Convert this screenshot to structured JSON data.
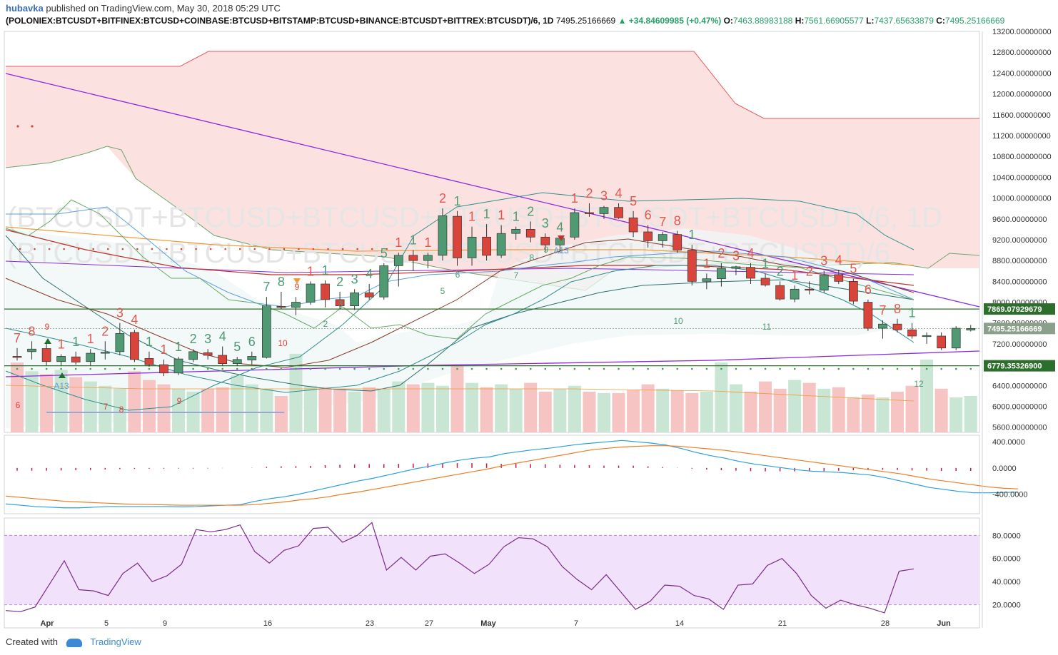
{
  "header": {
    "author": "hubavka",
    "published_text": "published on TradingView.com, May 30, 2018 05:29 UTC",
    "symbol": "(POLONIEX:BTCUSDT+BITFINEX:BTCUSD+COINBASE:BTCUSD+BITSTAMP:BTCUSD+BINANCE:BTCUSDT+BITTREX:BTCUSDT)/6, 1D",
    "last": "7495.25166669",
    "change": "▲ +34.84609985 (+0.47%)",
    "o_label": "O:",
    "o": "7463.88983188",
    "h_label": "H:",
    "h": "7561.66905577",
    "l_label": "L:",
    "l": "7437.65633879",
    "c_label": "C:",
    "c": "7495.25166669"
  },
  "watermark": {
    "line1": "(BTCUSDT+BTCUSD+BTCUSD+BTCUSD+BTCUSDT+BTCUSDT)/6, 1D",
    "line2": "(BTCUSDT+BTCUSD+BTCUSD+BTCUSD+BTCUSDT+BTCUSDT)/6"
  },
  "footer": {
    "created_with": "Created with",
    "brand": "TradingView"
  },
  "colors": {
    "up": "#4f9a73",
    "down": "#d9453a",
    "cloud_red": "#fbdcdc",
    "rsi_band": "#f1e1fb",
    "macd": "#2a9fe0",
    "signal": "#f07c22"
  },
  "chart_data": {
    "type": "candlestick",
    "x_tick_labels": [
      "Apr",
      "5",
      "9",
      "16",
      "23",
      "27",
      "May",
      "7",
      "14",
      "21",
      "28",
      "Jun"
    ],
    "price_axis": {
      "range": [
        5500,
        13200
      ],
      "ticks": [
        "13200.00000000",
        "12800.00000000",
        "12400.00000000",
        "12000.00000000",
        "11600.00000000",
        "11200.00000000",
        "10800.00000000",
        "10400.00000000",
        "10000.00000000",
        "9600.00000000",
        "9200.00000000",
        "8800.00000000",
        "8400.00000000",
        "8000.00000000",
        "7600.00000000",
        "7200.00000000",
        "6800.00000000",
        "6400.00000000",
        "6000.00000000",
        "5600.00000000"
      ],
      "tick_values": [
        13200,
        12800,
        12400,
        12000,
        11600,
        11200,
        10800,
        10400,
        10000,
        9600,
        9200,
        8800,
        8400,
        8000,
        7600,
        7200,
        6800,
        6400,
        6000,
        5600
      ]
    },
    "horizontal_levels": [
      {
        "label": "7869.07929679",
        "value": 7869.08
      },
      {
        "label": "7495.25166669",
        "value": 7495.25
      },
      {
        "label": "6779.35326900",
        "value": 6779.35
      }
    ],
    "candles": [
      {
        "o": 6960,
        "h": 7120,
        "l": 6880,
        "c": 6940
      },
      {
        "o": 7050,
        "h": 7250,
        "l": 6900,
        "c": 7100
      },
      {
        "o": 7110,
        "h": 7260,
        "l": 6790,
        "c": 6860
      },
      {
        "o": 6860,
        "h": 7000,
        "l": 6780,
        "c": 6960
      },
      {
        "o": 6950,
        "h": 7050,
        "l": 6800,
        "c": 6850
      },
      {
        "o": 6860,
        "h": 7100,
        "l": 6780,
        "c": 7020
      },
      {
        "o": 7020,
        "h": 7250,
        "l": 6900,
        "c": 7040
      },
      {
        "o": 7050,
        "h": 7600,
        "l": 6980,
        "c": 7400
      },
      {
        "o": 7420,
        "h": 7470,
        "l": 6850,
        "c": 6900
      },
      {
        "o": 6920,
        "h": 7050,
        "l": 6760,
        "c": 6800
      },
      {
        "o": 6800,
        "h": 6900,
        "l": 6580,
        "c": 6640
      },
      {
        "o": 6640,
        "h": 6950,
        "l": 6600,
        "c": 6910
      },
      {
        "o": 6900,
        "h": 7100,
        "l": 6850,
        "c": 7050
      },
      {
        "o": 7030,
        "h": 7100,
        "l": 6900,
        "c": 6980
      },
      {
        "o": 6980,
        "h": 7150,
        "l": 6780,
        "c": 6820
      },
      {
        "o": 6820,
        "h": 6950,
        "l": 6780,
        "c": 6900
      },
      {
        "o": 6890,
        "h": 7050,
        "l": 6800,
        "c": 6960
      },
      {
        "o": 6940,
        "h": 8100,
        "l": 6920,
        "c": 7930
      },
      {
        "o": 7920,
        "h": 8200,
        "l": 7870,
        "c": 7900
      },
      {
        "o": 7900,
        "h": 8100,
        "l": 7750,
        "c": 8000
      },
      {
        "o": 8000,
        "h": 8400,
        "l": 7950,
        "c": 8350
      },
      {
        "o": 8350,
        "h": 8420,
        "l": 7900,
        "c": 8050
      },
      {
        "o": 8050,
        "h": 8200,
        "l": 7870,
        "c": 7930
      },
      {
        "o": 7930,
        "h": 8250,
        "l": 7850,
        "c": 8180
      },
      {
        "o": 8180,
        "h": 8350,
        "l": 8050,
        "c": 8100
      },
      {
        "o": 8100,
        "h": 8750,
        "l": 8050,
        "c": 8700
      },
      {
        "o": 8700,
        "h": 8950,
        "l": 8300,
        "c": 8900
      },
      {
        "o": 8900,
        "h": 9000,
        "l": 8600,
        "c": 8800
      },
      {
        "o": 8800,
        "h": 8950,
        "l": 8650,
        "c": 8900
      },
      {
        "o": 8900,
        "h": 9800,
        "l": 8800,
        "c": 9660
      },
      {
        "o": 9650,
        "h": 9750,
        "l": 8700,
        "c": 8850
      },
      {
        "o": 8850,
        "h": 9450,
        "l": 8700,
        "c": 9250
      },
      {
        "o": 9250,
        "h": 9500,
        "l": 8800,
        "c": 8900
      },
      {
        "o": 8900,
        "h": 9480,
        "l": 8850,
        "c": 9320
      },
      {
        "o": 9320,
        "h": 9450,
        "l": 9200,
        "c": 9400
      },
      {
        "o": 9400,
        "h": 9550,
        "l": 9150,
        "c": 9250
      },
      {
        "o": 9250,
        "h": 9320,
        "l": 8950,
        "c": 9100
      },
      {
        "o": 9100,
        "h": 9250,
        "l": 8950,
        "c": 9230
      },
      {
        "o": 9250,
        "h": 9800,
        "l": 9200,
        "c": 9720
      },
      {
        "o": 9720,
        "h": 9900,
        "l": 9640,
        "c": 9700
      },
      {
        "o": 9700,
        "h": 9850,
        "l": 9600,
        "c": 9820
      },
      {
        "o": 9820,
        "h": 9900,
        "l": 9600,
        "c": 9620
      },
      {
        "o": 9620,
        "h": 9750,
        "l": 9250,
        "c": 9350
      },
      {
        "o": 9350,
        "h": 9480,
        "l": 9050,
        "c": 9180
      },
      {
        "o": 9180,
        "h": 9350,
        "l": 9050,
        "c": 9300
      },
      {
        "o": 9300,
        "h": 9370,
        "l": 8950,
        "c": 9000
      },
      {
        "o": 9000,
        "h": 9100,
        "l": 8320,
        "c": 8400
      },
      {
        "o": 8400,
        "h": 8550,
        "l": 8250,
        "c": 8450
      },
      {
        "o": 8450,
        "h": 8750,
        "l": 8300,
        "c": 8650
      },
      {
        "o": 8650,
        "h": 8700,
        "l": 8520,
        "c": 8680
      },
      {
        "o": 8670,
        "h": 8750,
        "l": 8350,
        "c": 8460
      },
      {
        "o": 8460,
        "h": 8550,
        "l": 8300,
        "c": 8330
      },
      {
        "o": 8320,
        "h": 8400,
        "l": 8030,
        "c": 8060
      },
      {
        "o": 8060,
        "h": 8320,
        "l": 8000,
        "c": 8250
      },
      {
        "o": 8250,
        "h": 8400,
        "l": 8150,
        "c": 8230
      },
      {
        "o": 8230,
        "h": 8600,
        "l": 8180,
        "c": 8520
      },
      {
        "o": 8530,
        "h": 8620,
        "l": 8350,
        "c": 8400
      },
      {
        "o": 8400,
        "h": 8450,
        "l": 7960,
        "c": 8020
      },
      {
        "o": 8000,
        "h": 8050,
        "l": 7450,
        "c": 7500
      },
      {
        "o": 7500,
        "h": 7650,
        "l": 7300,
        "c": 7580
      },
      {
        "o": 7580,
        "h": 7680,
        "l": 7420,
        "c": 7470
      },
      {
        "o": 7470,
        "h": 7600,
        "l": 7300,
        "c": 7350
      },
      {
        "o": 7340,
        "h": 7420,
        "l": 7200,
        "c": 7360
      },
      {
        "o": 7350,
        "h": 7420,
        "l": 7080,
        "c": 7120
      },
      {
        "o": 7120,
        "h": 7540,
        "l": 7080,
        "c": 7500
      },
      {
        "o": 7463.89,
        "h": 7561.67,
        "l": 7437.66,
        "c": 7495.25
      }
    ],
    "volume_range": [
      0,
      1000000000
    ],
    "volumes": [
      480,
      420,
      400,
      430,
      380,
      350,
      320,
      300,
      420,
      360,
      330,
      300,
      280,
      300,
      310,
      390,
      330,
      300,
      250,
      540,
      320,
      310,
      300,
      280,
      310,
      300,
      350,
      330,
      340,
      320,
      460,
      340,
      310,
      330,
      300,
      340,
      280,
      300,
      320,
      280,
      270,
      270,
      290,
      330,
      300,
      290,
      270,
      280,
      480,
      330,
      280,
      350,
      300,
      360,
      340,
      300,
      310,
      240,
      260,
      240,
      280,
      320,
      500,
      300,
      240,
      250,
      200,
      450,
      380,
      100
    ],
    "macd": {
      "range": [
        -700,
        500
      ],
      "ticks": [
        "400.0000",
        "0.0000",
        "-400.0000"
      ],
      "tick_values": [
        400,
        0,
        -400
      ],
      "macd_line": [
        -550,
        -570,
        -590,
        -600,
        -610,
        -610,
        -600,
        -590,
        -590,
        -590,
        -590,
        -590,
        -595,
        -590,
        -580,
        -570,
        -560,
        -510,
        -470,
        -440,
        -400,
        -350,
        -300,
        -250,
        -200,
        -160,
        -110,
        -60,
        -10,
        30,
        80,
        120,
        150,
        170,
        220,
        250,
        280,
        300,
        330,
        360,
        380,
        400,
        420,
        400,
        380,
        350,
        300,
        240,
        190,
        150,
        100,
        60,
        30,
        0,
        -30,
        -50,
        -60,
        -70,
        -90,
        -110,
        -150,
        -200,
        -250,
        -300,
        -330,
        -360,
        -380,
        -380,
        -375,
        -370
      ],
      "signal_line": [
        -430,
        -450,
        -470,
        -490,
        -510,
        -520,
        -530,
        -540,
        -550,
        -555,
        -560,
        -565,
        -570,
        -570,
        -570,
        -570,
        -570,
        -560,
        -540,
        -520,
        -490,
        -470,
        -440,
        -400,
        -370,
        -330,
        -290,
        -250,
        -210,
        -170,
        -130,
        -90,
        -50,
        -10,
        40,
        80,
        120,
        160,
        200,
        240,
        280,
        300,
        320,
        330,
        340,
        340,
        330,
        310,
        290,
        270,
        240,
        210,
        180,
        150,
        120,
        90,
        60,
        30,
        0,
        -30,
        -60,
        -90,
        -130,
        -170,
        -200,
        -230,
        -260,
        -290,
        -310,
        -320
      ]
    },
    "rsi": {
      "range": [
        0,
        95
      ],
      "ticks": [
        "80.0000",
        "60.0000",
        "40.0000",
        "20.0000"
      ],
      "tick_values": [
        80,
        60,
        40,
        20
      ],
      "band": [
        20,
        80
      ],
      "values": [
        15,
        14,
        18,
        38,
        58,
        33,
        32,
        28,
        47,
        56,
        40,
        45,
        55,
        85,
        83,
        85,
        89,
        66,
        56,
        67,
        71,
        86,
        87,
        74,
        80,
        91,
        50,
        61,
        50,
        62,
        64,
        56,
        47,
        55,
        70,
        78,
        77,
        70,
        53,
        42,
        33,
        46,
        31,
        16,
        23,
        37,
        36,
        28,
        25,
        16,
        37,
        38,
        54,
        60,
        47,
        28,
        17,
        24,
        20,
        17,
        13,
        49,
        51
      ]
    },
    "td_sequential": [
      {
        "c": 0,
        "t": "7",
        "up": false
      },
      {
        "c": 1,
        "t": "8",
        "up": false
      },
      {
        "c": 3,
        "t": "1",
        "up": false
      },
      {
        "c": 4,
        "t": "1",
        "up": true
      },
      {
        "c": 5,
        "t": "1",
        "up": false
      },
      {
        "c": 6,
        "t": "2",
        "up": false
      },
      {
        "c": 7,
        "t": "3",
        "up": false
      },
      {
        "c": 8,
        "t": "4",
        "up": false
      },
      {
        "c": 9,
        "t": "1",
        "up": true
      },
      {
        "c": 10,
        "t": "1",
        "up": false
      },
      {
        "c": 11,
        "t": "1",
        "up": true
      },
      {
        "c": 12,
        "t": "2",
        "up": true
      },
      {
        "c": 13,
        "t": "3",
        "up": true
      },
      {
        "c": 14,
        "t": "4",
        "up": true
      },
      {
        "c": 15,
        "t": "5",
        "up": true
      },
      {
        "c": 16,
        "t": "6",
        "up": true
      },
      {
        "c": 17,
        "t": "7",
        "up": true
      },
      {
        "c": 18,
        "t": "8",
        "up": true
      },
      {
        "c": 20,
        "t": "1",
        "up": false
      },
      {
        "c": 21,
        "t": "1",
        "up": true
      },
      {
        "c": 22,
        "t": "2",
        "up": true
      },
      {
        "c": 23,
        "t": "3",
        "up": true
      },
      {
        "c": 24,
        "t": "4",
        "up": true
      },
      {
        "c": 25,
        "t": "5",
        "up": true
      },
      {
        "c": 26,
        "t": "1",
        "up": false
      },
      {
        "c": 27,
        "t": "1",
        "up": true
      },
      {
        "c": 28,
        "t": "1",
        "up": false
      },
      {
        "c": 29,
        "t": "2",
        "up": false
      },
      {
        "c": 30,
        "t": "1",
        "up": true
      },
      {
        "c": 31,
        "t": "1",
        "up": false
      },
      {
        "c": 32,
        "t": "1",
        "up": true
      },
      {
        "c": 33,
        "t": "1",
        "up": false
      },
      {
        "c": 34,
        "t": "1",
        "up": true
      },
      {
        "c": 35,
        "t": "2",
        "up": true
      },
      {
        "c": 36,
        "t": "3",
        "up": true
      },
      {
        "c": 37,
        "t": "4",
        "up": true
      },
      {
        "c": 38,
        "t": "1",
        "up": false
      },
      {
        "c": 39,
        "t": "2",
        "up": false
      },
      {
        "c": 40,
        "t": "3",
        "up": false
      },
      {
        "c": 41,
        "t": "4",
        "up": false
      },
      {
        "c": 42,
        "t": "5",
        "up": false
      },
      {
        "c": 43,
        "t": "6",
        "up": false
      },
      {
        "c": 44,
        "t": "7",
        "up": false
      },
      {
        "c": 45,
        "t": "8",
        "up": false
      },
      {
        "c": 46,
        "t": "1",
        "up": true
      },
      {
        "c": 47,
        "t": "1",
        "up": false
      },
      {
        "c": 48,
        "t": "2",
        "up": false
      },
      {
        "c": 49,
        "t": "3",
        "up": false
      },
      {
        "c": 50,
        "t": "4",
        "up": false
      },
      {
        "c": 51,
        "t": "1",
        "up": true
      },
      {
        "c": 52,
        "t": "2",
        "up": true
      },
      {
        "c": 53,
        "t": "1",
        "up": false
      },
      {
        "c": 54,
        "t": "2",
        "up": false
      },
      {
        "c": 55,
        "t": "3",
        "up": false
      },
      {
        "c": 56,
        "t": "4",
        "up": false
      },
      {
        "c": 57,
        "t": "5",
        "up": false
      },
      {
        "c": 58,
        "t": "6",
        "up": false
      },
      {
        "c": 59,
        "t": "7",
        "up": false
      },
      {
        "c": 60,
        "t": "8",
        "up": false
      },
      {
        "c": 61,
        "t": "1",
        "up": true
      }
    ],
    "small_labels": [
      {
        "t": "6",
        "x": 25,
        "y": 572,
        "col": "#d9453a"
      },
      {
        "t": "7",
        "x": 148,
        "y": 574,
        "col": "#d9453a"
      },
      {
        "t": "8",
        "x": 170,
        "y": 578,
        "col": "#d9453a"
      },
      {
        "t": "9",
        "x": 251,
        "y": 566,
        "col": "#d9453a"
      },
      {
        "t": "10",
        "x": 396,
        "y": 485,
        "col": "#d9453a"
      },
      {
        "t": "2",
        "x": 456,
        "y": 458,
        "col": "#4f9a73"
      },
      {
        "t": "3",
        "x": 477,
        "y": 430,
        "col": "#4f9a73"
      },
      {
        "t": "4",
        "x": 539,
        "y": 407,
        "col": "#4f9a73"
      },
      {
        "t": "5",
        "x": 620,
        "y": 412,
        "col": "#4f9a73"
      },
      {
        "t": "6",
        "x": 641,
        "y": 389,
        "col": "#4f9a73"
      },
      {
        "t": "7",
        "x": 723,
        "y": 390,
        "col": "#4f9a73"
      },
      {
        "t": "8",
        "x": 745,
        "y": 365,
        "col": "#4f9a73"
      },
      {
        "t": "9",
        "x": 765,
        "y": 354,
        "col": "#4f9a73"
      },
      {
        "t": "10",
        "x": 950,
        "y": 454,
        "col": "#4f9a73"
      },
      {
        "t": "11",
        "x": 1074,
        "y": 462,
        "col": "#4f9a73"
      },
      {
        "t": "12",
        "x": 1287,
        "y": 542,
        "col": "#4f9a73"
      },
      {
        "t": "A13",
        "x": 86,
        "y": 545,
        "col": "#5aa0e0"
      },
      {
        "t": "A13",
        "x": 786,
        "y": 355,
        "col": "#5aa0e0"
      },
      {
        "t": "9",
        "x": 66,
        "y": 462,
        "col": "#d9453a"
      },
      {
        "t": "9",
        "x": 416,
        "y": 406,
        "col": "#d9453a"
      }
    ]
  }
}
